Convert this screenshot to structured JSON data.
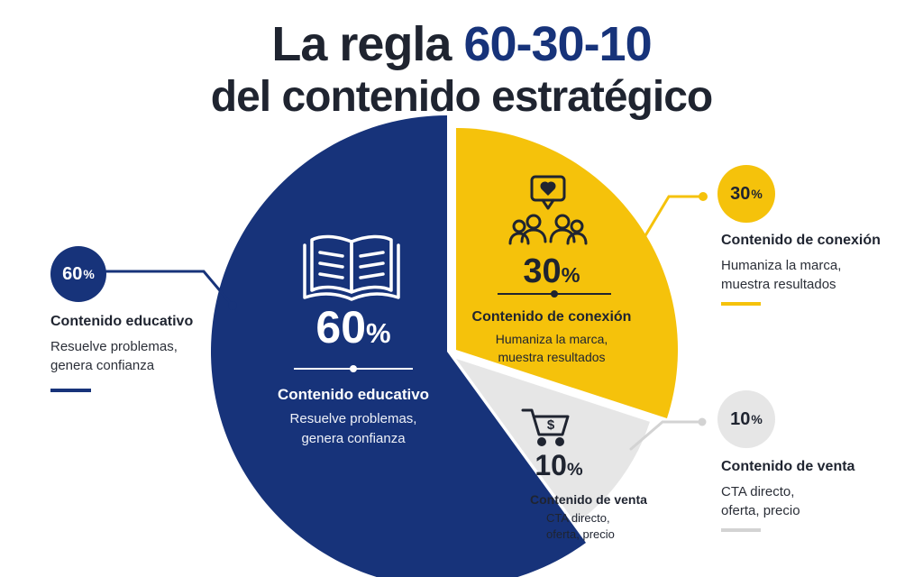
{
  "title": {
    "line1_prefix": "La regla ",
    "line1_accent": "60-30-10",
    "line2": "del contenido estratégico"
  },
  "colors": {
    "educativo": "#17337a",
    "conexion": "#f5c20b",
    "venta": "#e6e6e6",
    "dark": "#1f2430",
    "connector_gray": "#d3d3d3"
  },
  "chart_data": {
    "type": "pie",
    "title": "La regla 60-30-10 del contenido estratégico",
    "slices": [
      {
        "name": "Contenido educativo",
        "value": 60,
        "label": "60",
        "unit": "%",
        "desc": [
          "Resuelve problemas,",
          "genera confianza"
        ],
        "color": "#17337a",
        "icon": "open-book-icon"
      },
      {
        "name": "Contenido de conexión",
        "value": 30,
        "label": "30",
        "unit": "%",
        "desc": [
          "Humaniza la marca,",
          "muestra resultados"
        ],
        "color": "#f5c20b",
        "icon": "community-heart-icon"
      },
      {
        "name": "Contenido de venta",
        "value": 10,
        "label": "10",
        "unit": "%",
        "desc": [
          "CTA directo,",
          "oferta, precio"
        ],
        "color": "#e6e6e6",
        "icon": "shopping-cart-icon"
      }
    ]
  }
}
